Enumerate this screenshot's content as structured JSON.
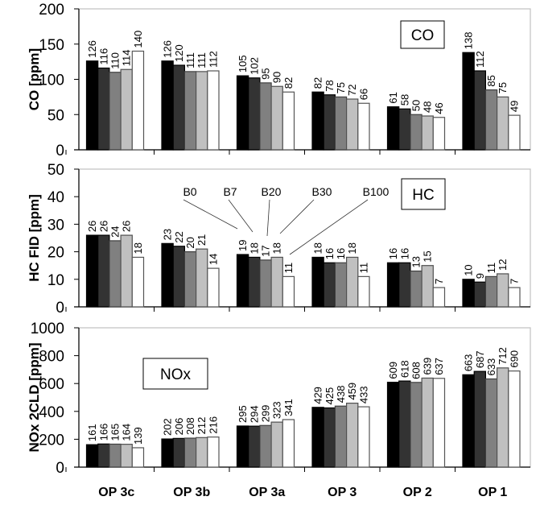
{
  "chart_data": {
    "type": "bar",
    "categories": [
      "OP 3c",
      "OP 3b",
      "OP 3a",
      "OP 3",
      "OP 2",
      "OP 1"
    ],
    "series_names": [
      "B0",
      "B7",
      "B20",
      "B30",
      "B100"
    ],
    "series_colors": [
      "#000000",
      "#333333",
      "#808080",
      "#c0c0c0",
      "#ffffff"
    ],
    "panels": [
      {
        "name": "co",
        "tag": "CO",
        "ylabel": "CO [ppm]",
        "ylim": [
          0,
          200
        ],
        "yticks": [
          0,
          50,
          100,
          150,
          200
        ],
        "series": [
          {
            "name": "B0",
            "values": [
              126,
              126,
              105,
              82,
              61,
              138
            ]
          },
          {
            "name": "B7",
            "values": [
              116,
              120,
              102,
              78,
              58,
              112
            ]
          },
          {
            "name": "B20",
            "values": [
              110,
              111,
              95,
              75,
              50,
              85
            ]
          },
          {
            "name": "B30",
            "values": [
              114,
              111,
              90,
              72,
              48,
              75
            ]
          },
          {
            "name": "B100",
            "values": [
              140,
              112,
              82,
              66,
              46,
              49
            ]
          }
        ]
      },
      {
        "name": "hc",
        "tag": "HC",
        "ylabel": "HC FID [ppm]",
        "ylim": [
          0,
          50
        ],
        "yticks": [
          0,
          10,
          20,
          30,
          40,
          50
        ],
        "legend": "callout-labels",
        "series": [
          {
            "name": "B0",
            "values": [
              26,
              23,
              19,
              18,
              16,
              10
            ]
          },
          {
            "name": "B7",
            "values": [
              26,
              22,
              18,
              16,
              16,
              9
            ]
          },
          {
            "name": "B20",
            "values": [
              24,
              20,
              17,
              16,
              13,
              11
            ]
          },
          {
            "name": "B30",
            "values": [
              26,
              21,
              18,
              18,
              15,
              12
            ]
          },
          {
            "name": "B100",
            "values": [
              18,
              14,
              11,
              11,
              7,
              7
            ]
          }
        ]
      },
      {
        "name": "nox",
        "tag": "NOx",
        "ylabel": "NOx 2CLD [ppm]",
        "ylim": [
          0,
          1000
        ],
        "yticks": [
          0,
          200,
          400,
          600,
          800,
          1000
        ],
        "series": [
          {
            "name": "B0",
            "values": [
              161,
              202,
              295,
              429,
              609,
              663
            ]
          },
          {
            "name": "B7",
            "values": [
              166,
              206,
              294,
              425,
              618,
              687
            ]
          },
          {
            "name": "B20",
            "values": [
              165,
              208,
              299,
              438,
              608,
              633
            ]
          },
          {
            "name": "B30",
            "values": [
              164,
              212,
              323,
              459,
              639,
              712
            ]
          },
          {
            "name": "B100",
            "values": [
              139,
              216,
              341,
              433,
              637,
              690
            ]
          }
        ]
      }
    ],
    "xlabel": "",
    "grid": false
  }
}
